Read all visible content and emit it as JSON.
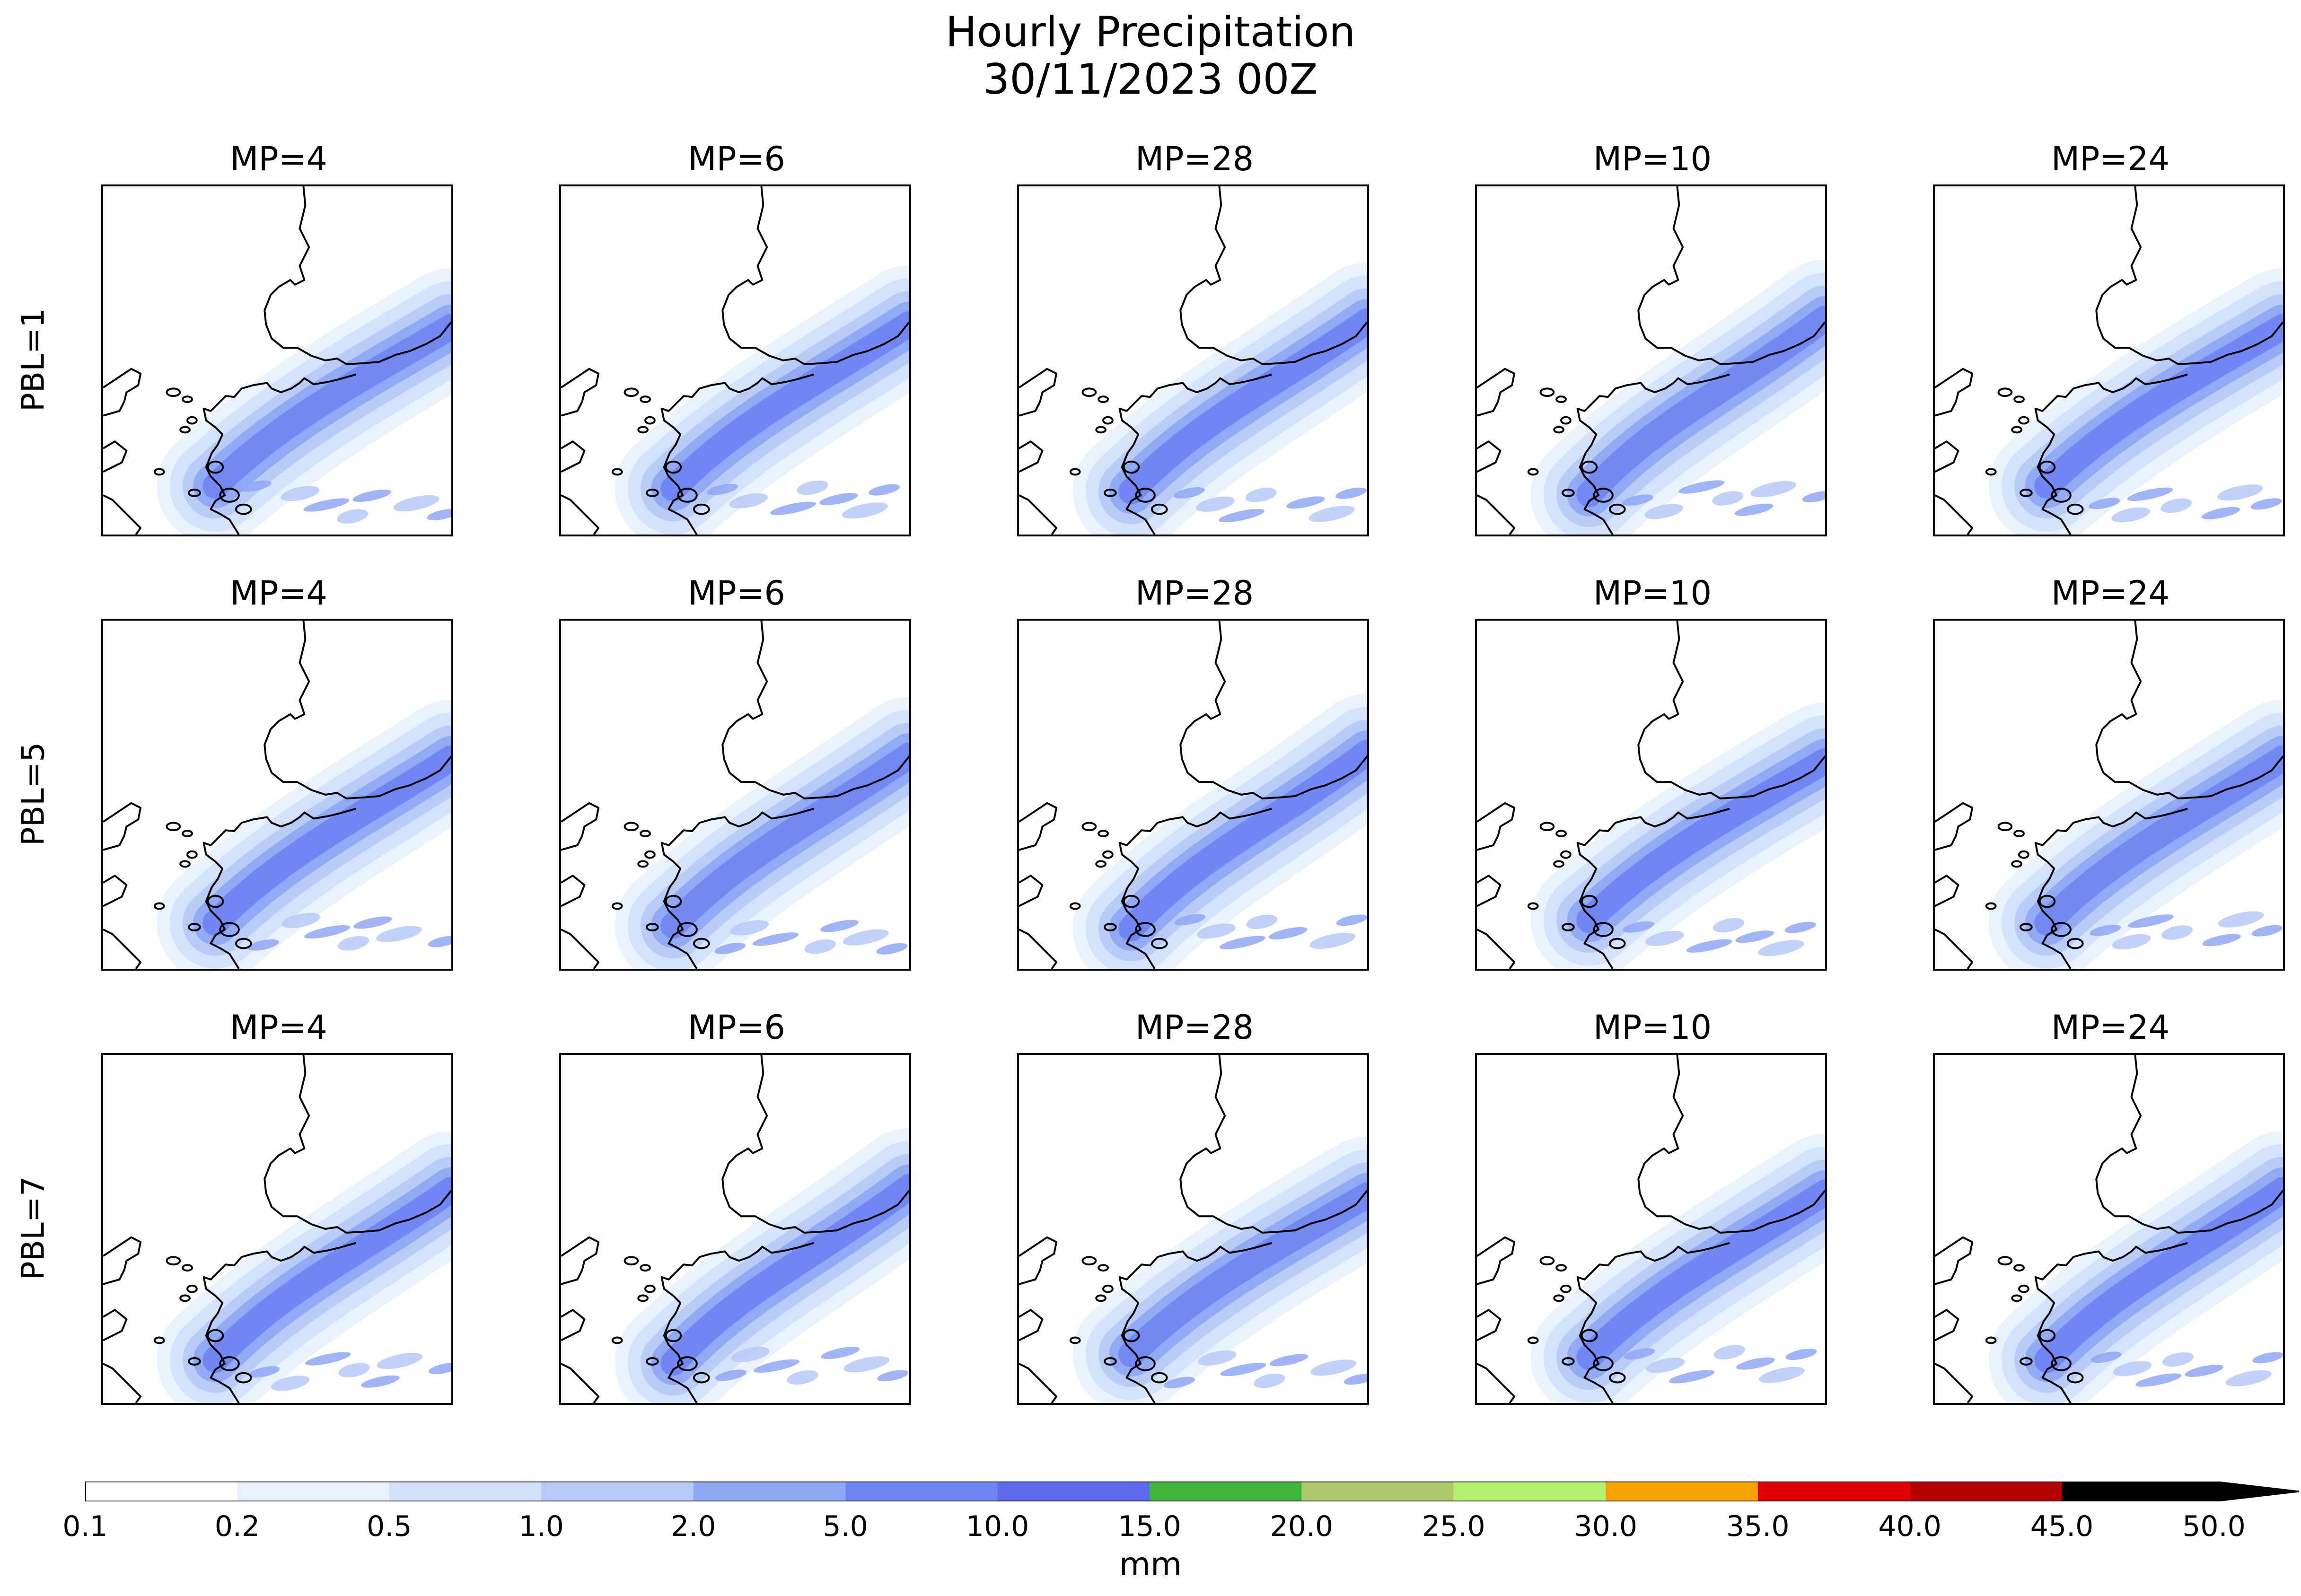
{
  "title": {
    "line1": "Hourly Precipitation",
    "line2": "30/11/2023 00Z"
  },
  "chart_data": {
    "type": "heatmap",
    "description": "3x5 panel grid of hourly precipitation maps; rows = PBL scheme, columns = MP scheme",
    "rows": [
      "PBL=1",
      "PBL=5",
      "PBL=7"
    ],
    "columns": [
      "MP=4",
      "MP=6",
      "MP=28",
      "MP=10",
      "MP=24"
    ],
    "colorbar": {
      "label": "mm",
      "extend": "max",
      "boundaries": [
        0.1,
        0.2,
        0.5,
        1.0,
        2.0,
        5.0,
        10.0,
        15.0,
        20.0,
        25.0,
        30.0,
        35.0,
        40.0,
        45.0,
        50.0
      ],
      "tick_labels": [
        "0.1",
        "0.2",
        "0.5",
        "1.0",
        "2.0",
        "5.0",
        "10.0",
        "15.0",
        "20.0",
        "25.0",
        "30.0",
        "35.0",
        "40.0",
        "45.0",
        "50.0"
      ],
      "colors": [
        "#ffffff",
        "#e8f1fd",
        "#d3e1fb",
        "#b7c9f7",
        "#8fa7f5",
        "#7084f3",
        "#5e69f0",
        "#3fb63b",
        "#aec86a",
        "#b5f06a",
        "#f8a300",
        "#e00000",
        "#b50000",
        "#000000"
      ]
    },
    "map": {
      "coastline_color": "#000000",
      "precip_band_orientation": "southwest-to-northeast"
    }
  }
}
